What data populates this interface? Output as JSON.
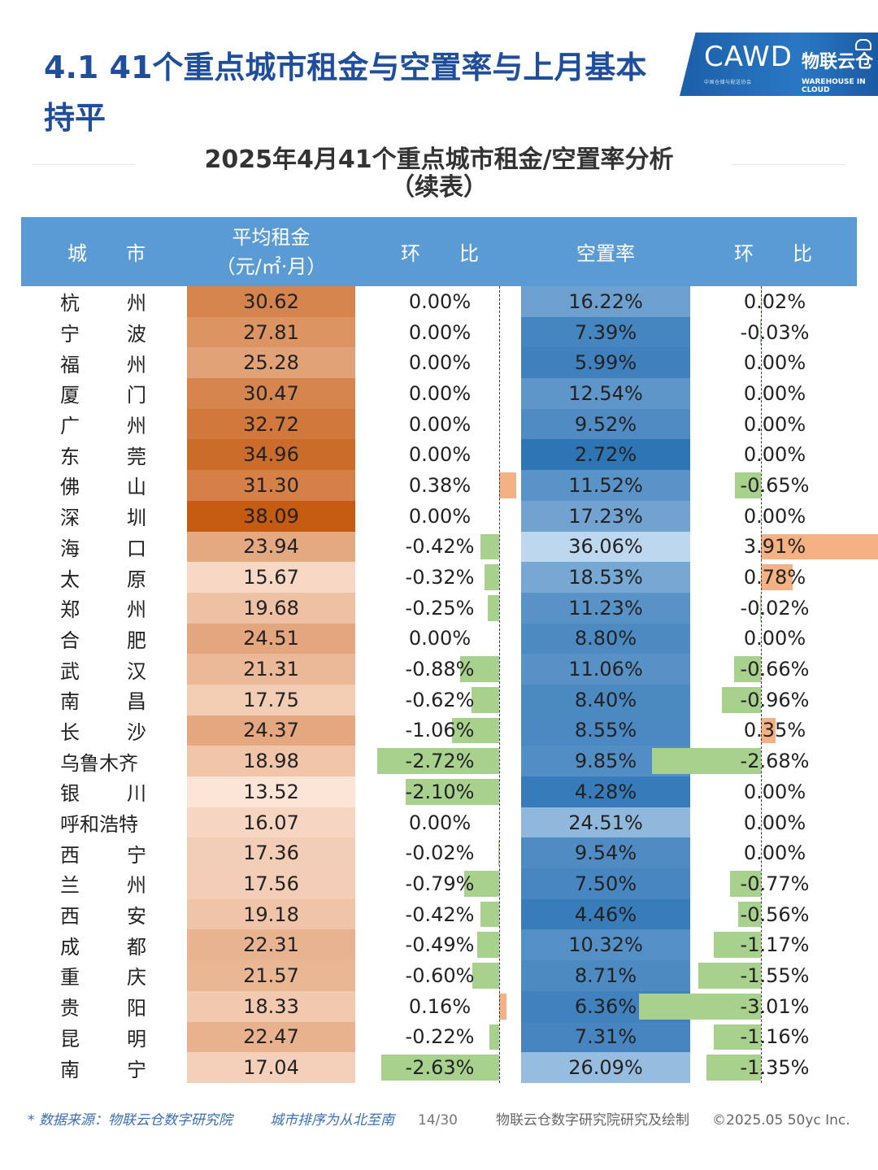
{
  "title": "4.1 41个重点城市租金与空置率与上月基本持平",
  "logo": {
    "cawd": "CAWD",
    "cawd_sub": "中国仓储与配送协会",
    "brand": "物联云仓",
    "brand_sub": "WAREHOUSE IN CLOUD"
  },
  "subtitle_line1": "2025年4月41个重点城市租金/空置率分析",
  "subtitle_line2": "（续表）",
  "headers": {
    "city": "城　　市",
    "rent_l1": "平均租金",
    "rent_l2": "（元/㎡·月）",
    "rent_mom": "环　　比",
    "vacancy": "空置率",
    "vacancy_mom": "环　　比"
  },
  "colors": {
    "header_bg": "#5b9bd5",
    "negative_bar": "#a9d18e",
    "positive_bar": "#f4b183",
    "rent_low": "#fce4d6",
    "rent_high": "#c55a11",
    "vacancy_low": "#bdd7ee",
    "vacancy_high": "#2e75b6"
  },
  "rows": [
    {
      "c1": "杭",
      "c2": "州",
      "rent": 30.62,
      "rent_text": "30.62",
      "rent_mom": 0.0,
      "rent_mom_text": "0.00%",
      "vac": 16.22,
      "vac_text": "16.22%",
      "vac_mom": 0.02,
      "vac_mom_text": "0.02%"
    },
    {
      "c1": "宁",
      "c2": "波",
      "rent": 27.81,
      "rent_text": "27.81",
      "rent_mom": 0.0,
      "rent_mom_text": "0.00%",
      "vac": 7.39,
      "vac_text": "7.39%",
      "vac_mom": -0.03,
      "vac_mom_text": "-0.03%"
    },
    {
      "c1": "福",
      "c2": "州",
      "rent": 25.28,
      "rent_text": "25.28",
      "rent_mom": 0.0,
      "rent_mom_text": "0.00%",
      "vac": 5.99,
      "vac_text": "5.99%",
      "vac_mom": 0.0,
      "vac_mom_text": "0.00%"
    },
    {
      "c1": "厦",
      "c2": "门",
      "rent": 30.47,
      "rent_text": "30.47",
      "rent_mom": 0.0,
      "rent_mom_text": "0.00%",
      "vac": 12.54,
      "vac_text": "12.54%",
      "vac_mom": 0.0,
      "vac_mom_text": "0.00%"
    },
    {
      "c1": "广",
      "c2": "州",
      "rent": 32.72,
      "rent_text": "32.72",
      "rent_mom": 0.0,
      "rent_mom_text": "0.00%",
      "vac": 9.52,
      "vac_text": "9.52%",
      "vac_mom": 0.0,
      "vac_mom_text": "0.00%"
    },
    {
      "c1": "东",
      "c2": "莞",
      "rent": 34.96,
      "rent_text": "34.96",
      "rent_mom": 0.0,
      "rent_mom_text": "0.00%",
      "vac": 2.72,
      "vac_text": "2.72%",
      "vac_mom": 0.0,
      "vac_mom_text": "0.00%"
    },
    {
      "c1": "佛",
      "c2": "山",
      "rent": 31.3,
      "rent_text": "31.30",
      "rent_mom": 0.38,
      "rent_mom_text": "0.38%",
      "vac": 11.52,
      "vac_text": "11.52%",
      "vac_mom": -0.65,
      "vac_mom_text": "-0.65%"
    },
    {
      "c1": "深",
      "c2": "圳",
      "rent": 38.09,
      "rent_text": "38.09",
      "rent_mom": 0.0,
      "rent_mom_text": "0.00%",
      "vac": 17.23,
      "vac_text": "17.23%",
      "vac_mom": 0.0,
      "vac_mom_text": "0.00%"
    },
    {
      "c1": "海",
      "c2": "口",
      "rent": 23.94,
      "rent_text": "23.94",
      "rent_mom": -0.42,
      "rent_mom_text": "-0.42%",
      "vac": 36.06,
      "vac_text": "36.06%",
      "vac_mom": 3.91,
      "vac_mom_text": "3.91%"
    },
    {
      "c1": "太",
      "c2": "原",
      "rent": 15.67,
      "rent_text": "15.67",
      "rent_mom": -0.32,
      "rent_mom_text": "-0.32%",
      "vac": 18.53,
      "vac_text": "18.53%",
      "vac_mom": 0.78,
      "vac_mom_text": "0.78%"
    },
    {
      "c1": "郑",
      "c2": "州",
      "rent": 19.68,
      "rent_text": "19.68",
      "rent_mom": -0.25,
      "rent_mom_text": "-0.25%",
      "vac": 11.23,
      "vac_text": "11.23%",
      "vac_mom": -0.02,
      "vac_mom_text": "-0.02%"
    },
    {
      "c1": "合",
      "c2": "肥",
      "rent": 24.51,
      "rent_text": "24.51",
      "rent_mom": 0.0,
      "rent_mom_text": "0.00%",
      "vac": 8.8,
      "vac_text": "8.80%",
      "vac_mom": 0.0,
      "vac_mom_text": "0.00%"
    },
    {
      "c1": "武",
      "c2": "汉",
      "rent": 21.31,
      "rent_text": "21.31",
      "rent_mom": -0.88,
      "rent_mom_text": "-0.88%",
      "vac": 11.06,
      "vac_text": "11.06%",
      "vac_mom": -0.66,
      "vac_mom_text": "-0.66%"
    },
    {
      "c1": "南",
      "c2": "昌",
      "rent": 17.75,
      "rent_text": "17.75",
      "rent_mom": -0.62,
      "rent_mom_text": "-0.62%",
      "vac": 8.4,
      "vac_text": "8.40%",
      "vac_mom": -0.96,
      "vac_mom_text": "-0.96%"
    },
    {
      "c1": "长",
      "c2": "沙",
      "rent": 24.37,
      "rent_text": "24.37",
      "rent_mom": -1.06,
      "rent_mom_text": "-1.06%",
      "vac": 8.55,
      "vac_text": "8.55%",
      "vac_mom": 0.35,
      "vac_mom_text": "0.35%"
    },
    {
      "c1": "乌鲁木齐",
      "c2": "",
      "rent": 18.98,
      "rent_text": "18.98",
      "rent_mom": -2.72,
      "rent_mom_text": "-2.72%",
      "vac": 9.85,
      "vac_text": "9.85%",
      "vac_mom": -2.68,
      "vac_mom_text": "-2.68%"
    },
    {
      "c1": "银",
      "c2": "川",
      "rent": 13.52,
      "rent_text": "13.52",
      "rent_mom": -2.1,
      "rent_mom_text": "-2.10%",
      "vac": 4.28,
      "vac_text": "4.28%",
      "vac_mom": 0.0,
      "vac_mom_text": "0.00%"
    },
    {
      "c1": "呼和浩特",
      "c2": "",
      "rent": 16.07,
      "rent_text": "16.07",
      "rent_mom": 0.0,
      "rent_mom_text": "0.00%",
      "vac": 24.51,
      "vac_text": "24.51%",
      "vac_mom": 0.0,
      "vac_mom_text": "0.00%"
    },
    {
      "c1": "西",
      "c2": "宁",
      "rent": 17.36,
      "rent_text": "17.36",
      "rent_mom": -0.02,
      "rent_mom_text": "-0.02%",
      "vac": 9.54,
      "vac_text": "9.54%",
      "vac_mom": 0.0,
      "vac_mom_text": "0.00%"
    },
    {
      "c1": "兰",
      "c2": "州",
      "rent": 17.56,
      "rent_text": "17.56",
      "rent_mom": -0.79,
      "rent_mom_text": "-0.79%",
      "vac": 7.5,
      "vac_text": "7.50%",
      "vac_mom": -0.77,
      "vac_mom_text": "-0.77%"
    },
    {
      "c1": "西",
      "c2": "安",
      "rent": 19.18,
      "rent_text": "19.18",
      "rent_mom": -0.42,
      "rent_mom_text": "-0.42%",
      "vac": 4.46,
      "vac_text": "4.46%",
      "vac_mom": -0.56,
      "vac_mom_text": "-0.56%"
    },
    {
      "c1": "成",
      "c2": "都",
      "rent": 22.31,
      "rent_text": "22.31",
      "rent_mom": -0.49,
      "rent_mom_text": "-0.49%",
      "vac": 10.32,
      "vac_text": "10.32%",
      "vac_mom": -1.17,
      "vac_mom_text": "-1.17%"
    },
    {
      "c1": "重",
      "c2": "庆",
      "rent": 21.57,
      "rent_text": "21.57",
      "rent_mom": -0.6,
      "rent_mom_text": "-0.60%",
      "vac": 8.71,
      "vac_text": "8.71%",
      "vac_mom": -1.55,
      "vac_mom_text": "-1.55%"
    },
    {
      "c1": "贵",
      "c2": "阳",
      "rent": 18.33,
      "rent_text": "18.33",
      "rent_mom": 0.16,
      "rent_mom_text": "0.16%",
      "vac": 6.36,
      "vac_text": "6.36%",
      "vac_mom": -3.01,
      "vac_mom_text": "-3.01%"
    },
    {
      "c1": "昆",
      "c2": "明",
      "rent": 22.47,
      "rent_text": "22.47",
      "rent_mom": -0.22,
      "rent_mom_text": "-0.22%",
      "vac": 7.31,
      "vac_text": "7.31%",
      "vac_mom": -1.16,
      "vac_mom_text": "-1.16%"
    },
    {
      "c1": "南",
      "c2": "宁",
      "rent": 17.04,
      "rent_text": "17.04",
      "rent_mom": -2.63,
      "rent_mom_text": "-2.63%",
      "vac": 26.09,
      "vac_text": "26.09%",
      "vac_mom": -1.35,
      "vac_mom_text": "-1.35%"
    }
  ],
  "footer": {
    "source": "* 数据来源：物联云仓数字研究院",
    "order": "城市排序为从北至南",
    "page": "14/30",
    "credit": "物联云仓数字研究院研究及绘制",
    "copyright": "©2025.05 50yc Inc."
  }
}
